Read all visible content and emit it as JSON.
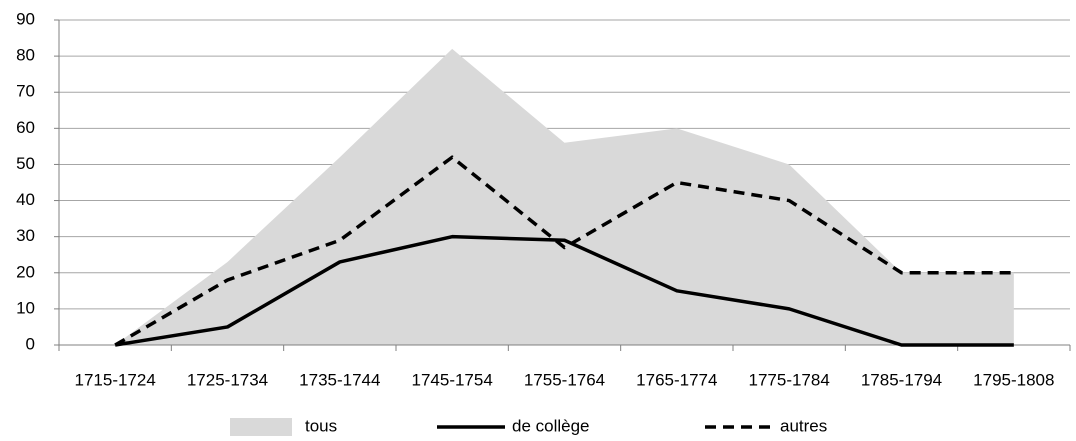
{
  "chart_data": {
    "type": "line",
    "categories": [
      "1715-1724",
      "1725-1734",
      "1735-1744",
      "1745-1754",
      "1755-1764",
      "1765-1774",
      "1775-1784",
      "1785-1794",
      "1795-1808"
    ],
    "series": [
      {
        "name": "tous",
        "kind": "area",
        "color": "#d9d9d9",
        "values": [
          0,
          23,
          52,
          82,
          56,
          60,
          50,
          20,
          20
        ]
      },
      {
        "name": "de collège",
        "kind": "solid",
        "color": "#000000",
        "values": [
          0,
          5,
          23,
          30,
          29,
          15,
          10,
          0,
          0
        ]
      },
      {
        "name": "autres",
        "kind": "dashed",
        "color": "#000000",
        "values": [
          0,
          18,
          29,
          52,
          27,
          45,
          40,
          20,
          20
        ]
      }
    ],
    "ylim": [
      0,
      90
    ],
    "yticks": [
      0,
      10,
      20,
      30,
      40,
      50,
      60,
      70,
      80,
      90
    ],
    "grid": true,
    "legend": "bottom"
  }
}
